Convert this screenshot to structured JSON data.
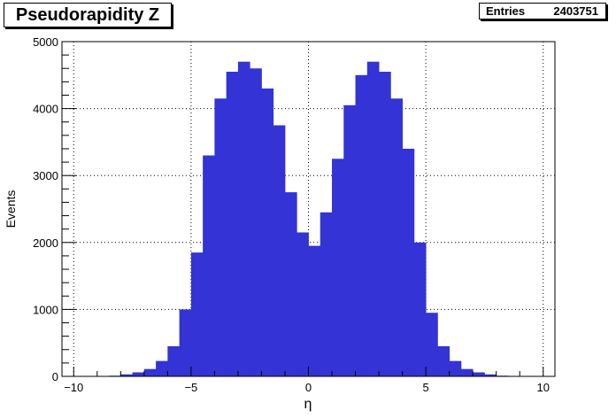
{
  "stats": {
    "entries_label": "Entries",
    "entries_value": "2403751"
  },
  "chart_data": {
    "type": "bar",
    "title": "Pseudorapidity Z",
    "xlabel": "η",
    "ylabel": "Events",
    "xlim": [
      -10.5,
      10.5
    ],
    "ylim": [
      0,
      5000
    ],
    "xticks": [
      -10,
      -5,
      0,
      5,
      10
    ],
    "xtick_labels": [
      "−10",
      "−5",
      "0",
      "5",
      "10"
    ],
    "yticks": [
      0,
      1000,
      2000,
      3000,
      4000,
      5000
    ],
    "ytick_labels": [
      "0",
      "1000",
      "2000",
      "3000",
      "4000",
      "5000"
    ],
    "grid": true,
    "fill_color": "#3333d6",
    "bin_width": 0.5,
    "series": [
      {
        "x": [
          -8.75,
          -8.25,
          -7.75,
          -7.25,
          -6.75,
          -6.25,
          -5.75,
          -5.25,
          -4.75,
          -4.25,
          -3.75,
          -3.25,
          -2.75,
          -2.25,
          -1.75,
          -1.25,
          -0.75,
          -0.25,
          0.25,
          0.75,
          1.25,
          1.75,
          2.25,
          2.75,
          3.25,
          3.75,
          4.25,
          4.75,
          5.25,
          5.75,
          6.25,
          6.75,
          7.25,
          7.75,
          8.25,
          8.75
        ],
        "values": [
          5,
          10,
          30,
          60,
          110,
          230,
          450,
          1000,
          1850,
          3300,
          4150,
          4550,
          4700,
          4600,
          4300,
          3750,
          2750,
          2150,
          1950,
          2450,
          3250,
          4050,
          4500,
          4700,
          4550,
          4150,
          3400,
          2000,
          950,
          450,
          230,
          110,
          60,
          30,
          10,
          5
        ]
      }
    ]
  }
}
